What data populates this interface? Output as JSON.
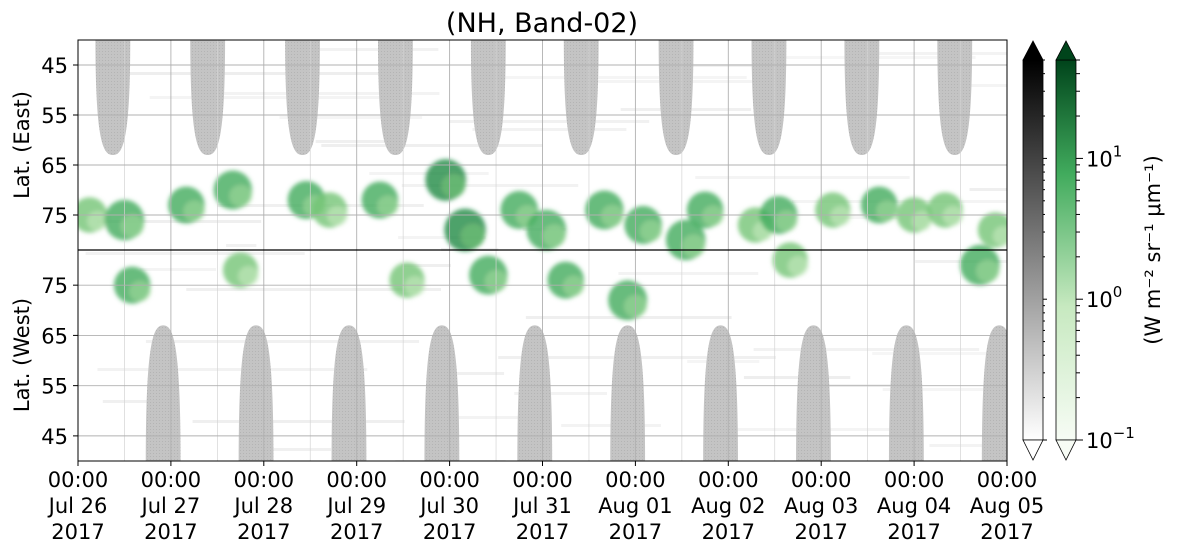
{
  "chart_data": {
    "type": "heatmap",
    "title": "(NH, Band-02)",
    "ylabel_top": "Lat. (East)",
    "ylabel_bottom": "Lat. (West)",
    "colorbar_label": "(W m⁻² sr⁻¹ μm⁻¹)",
    "colorbar_scale": "log",
    "colorbar_range": [
      0.1,
      50
    ],
    "colorbar_ticks": [
      {
        "value": 0.1,
        "base": "10",
        "exp": "−1"
      },
      {
        "value": 1,
        "base": "10",
        "exp": "0"
      },
      {
        "value": 10,
        "base": "10",
        "exp": "1"
      }
    ],
    "colormaps": {
      "gray": [
        "#ffffff",
        "#000000"
      ],
      "green": [
        "#f7fcf5",
        "#00441b"
      ]
    },
    "y_ticks_top": [
      "45",
      "55",
      "65",
      "75"
    ],
    "y_ticks_bottom": [
      "75",
      "65",
      "55",
      "45"
    ],
    "y_range": {
      "top": [
        40,
        82
      ],
      "bottom": [
        82,
        40
      ]
    },
    "x_ticks": [
      {
        "time": "00:00",
        "date": "Jul 26",
        "year": "2017"
      },
      {
        "time": "00:00",
        "date": "Jul 27",
        "year": "2017"
      },
      {
        "time": "00:00",
        "date": "Jul 28",
        "year": "2017"
      },
      {
        "time": "00:00",
        "date": "Jul 29",
        "year": "2017"
      },
      {
        "time": "00:00",
        "date": "Jul 30",
        "year": "2017"
      },
      {
        "time": "00:00",
        "date": "Jul 31",
        "year": "2017"
      },
      {
        "time": "00:00",
        "date": "Aug 01",
        "year": "2017"
      },
      {
        "time": "00:00",
        "date": "Aug 02",
        "year": "2017"
      },
      {
        "time": "00:00",
        "date": "Aug 03",
        "year": "2017"
      },
      {
        "time": "00:00",
        "date": "Aug 04",
        "year": "2017"
      },
      {
        "time": "00:00",
        "date": "Aug 05",
        "year": "2017"
      }
    ],
    "x_range": [
      "2017-07-26 00:00",
      "2017-08-05 00:00"
    ],
    "daylight_lobes_east": [
      {
        "center": "2017-07-26 09:00",
        "halfwidth_hours": 4.5,
        "max_lat": 63
      },
      {
        "center": "2017-07-27 09:30",
        "halfwidth_hours": 4.5,
        "max_lat": 63
      },
      {
        "center": "2017-07-28 10:00",
        "halfwidth_hours": 4.5,
        "max_lat": 63
      },
      {
        "center": "2017-07-29 10:00",
        "halfwidth_hours": 4.5,
        "max_lat": 63
      },
      {
        "center": "2017-07-30 10:00",
        "halfwidth_hours": 4.5,
        "max_lat": 63
      },
      {
        "center": "2017-07-31 10:00",
        "halfwidth_hours": 4.5,
        "max_lat": 63
      },
      {
        "center": "2017-08-01 10:30",
        "halfwidth_hours": 4.5,
        "max_lat": 63
      },
      {
        "center": "2017-08-02 10:30",
        "halfwidth_hours": 4.5,
        "max_lat": 63
      },
      {
        "center": "2017-08-03 10:30",
        "halfwidth_hours": 4.5,
        "max_lat": 63
      },
      {
        "center": "2017-08-04 10:30",
        "halfwidth_hours": 4.5,
        "max_lat": 63
      }
    ],
    "daylight_lobes_west": [
      {
        "center": "2017-07-26 22:00",
        "halfwidth_hours": 4.5,
        "max_lat": 67
      },
      {
        "center": "2017-07-27 22:00",
        "halfwidth_hours": 4.5,
        "max_lat": 67
      },
      {
        "center": "2017-07-28 22:00",
        "halfwidth_hours": 4.5,
        "max_lat": 67
      },
      {
        "center": "2017-07-29 22:00",
        "halfwidth_hours": 4.5,
        "max_lat": 67
      },
      {
        "center": "2017-07-30 22:00",
        "halfwidth_hours": 4.5,
        "max_lat": 67
      },
      {
        "center": "2017-07-31 22:00",
        "halfwidth_hours": 4.5,
        "max_lat": 67
      },
      {
        "center": "2017-08-01 22:00",
        "halfwidth_hours": 4.5,
        "max_lat": 67
      },
      {
        "center": "2017-08-02 22:00",
        "halfwidth_hours": 4.5,
        "max_lat": 67
      },
      {
        "center": "2017-08-03 22:00",
        "halfwidth_hours": 4.5,
        "max_lat": 67
      },
      {
        "center": "2017-08-04 22:00",
        "halfwidth_hours": 4.5,
        "max_lat": 67
      }
    ],
    "aurora_blobs": [
      {
        "time": "2017-07-26 03:00",
        "lat": 75,
        "hem": "east",
        "value": 3
      },
      {
        "time": "2017-07-26 12:00",
        "lat": 76,
        "hem": "east",
        "value": 8
      },
      {
        "time": "2017-07-26 14:00",
        "lat": 75,
        "hem": "west",
        "value": 4
      },
      {
        "time": "2017-07-27 04:00",
        "lat": 73,
        "hem": "east",
        "value": 4
      },
      {
        "time": "2017-07-27 16:00",
        "lat": 70,
        "hem": "east",
        "value": 6
      },
      {
        "time": "2017-07-27 18:00",
        "lat": 78,
        "hem": "west",
        "value": 3
      },
      {
        "time": "2017-07-28 11:00",
        "lat": 72,
        "hem": "east",
        "value": 5
      },
      {
        "time": "2017-07-28 17:00",
        "lat": 74,
        "hem": "east",
        "value": 3
      },
      {
        "time": "2017-07-29 06:00",
        "lat": 72,
        "hem": "east",
        "value": 4
      },
      {
        "time": "2017-07-29 13:00",
        "lat": 76,
        "hem": "west",
        "value": 3
      },
      {
        "time": "2017-07-29 23:00",
        "lat": 68,
        "hem": "east",
        "value": 10
      },
      {
        "time": "2017-07-30 04:00",
        "lat": 78,
        "hem": "east",
        "value": 12
      },
      {
        "time": "2017-07-30 10:00",
        "lat": 77,
        "hem": "west",
        "value": 6
      },
      {
        "time": "2017-07-30 18:00",
        "lat": 74,
        "hem": "east",
        "value": 5
      },
      {
        "time": "2017-07-31 01:00",
        "lat": 78,
        "hem": "east",
        "value": 8
      },
      {
        "time": "2017-07-31 06:00",
        "lat": 76,
        "hem": "west",
        "value": 4
      },
      {
        "time": "2017-07-31 16:00",
        "lat": 74,
        "hem": "east",
        "value": 6
      },
      {
        "time": "2017-07-31 22:00",
        "lat": 72,
        "hem": "west",
        "value": 7
      },
      {
        "time": "2017-08-01 02:00",
        "lat": 77,
        "hem": "east",
        "value": 5
      },
      {
        "time": "2017-08-01 13:00",
        "lat": 80,
        "hem": "east",
        "value": 8
      },
      {
        "time": "2017-08-01 18:00",
        "lat": 74,
        "hem": "east",
        "value": 4
      },
      {
        "time": "2017-08-02 07:00",
        "lat": 77,
        "hem": "east",
        "value": 3
      },
      {
        "time": "2017-08-02 13:00",
        "lat": 75,
        "hem": "east",
        "value": 5
      },
      {
        "time": "2017-08-02 16:00",
        "lat": 80,
        "hem": "west",
        "value": 3
      },
      {
        "time": "2017-08-03 03:00",
        "lat": 74,
        "hem": "east",
        "value": 3
      },
      {
        "time": "2017-08-03 15:00",
        "lat": 73,
        "hem": "east",
        "value": 4
      },
      {
        "time": "2017-08-04 00:00",
        "lat": 75,
        "hem": "east",
        "value": 3
      },
      {
        "time": "2017-08-04 08:00",
        "lat": 74,
        "hem": "east",
        "value": 3
      },
      {
        "time": "2017-08-04 17:00",
        "lat": 79,
        "hem": "west",
        "value": 8
      },
      {
        "time": "2017-08-04 21:00",
        "lat": 78,
        "hem": "east",
        "value": 3
      }
    ]
  }
}
